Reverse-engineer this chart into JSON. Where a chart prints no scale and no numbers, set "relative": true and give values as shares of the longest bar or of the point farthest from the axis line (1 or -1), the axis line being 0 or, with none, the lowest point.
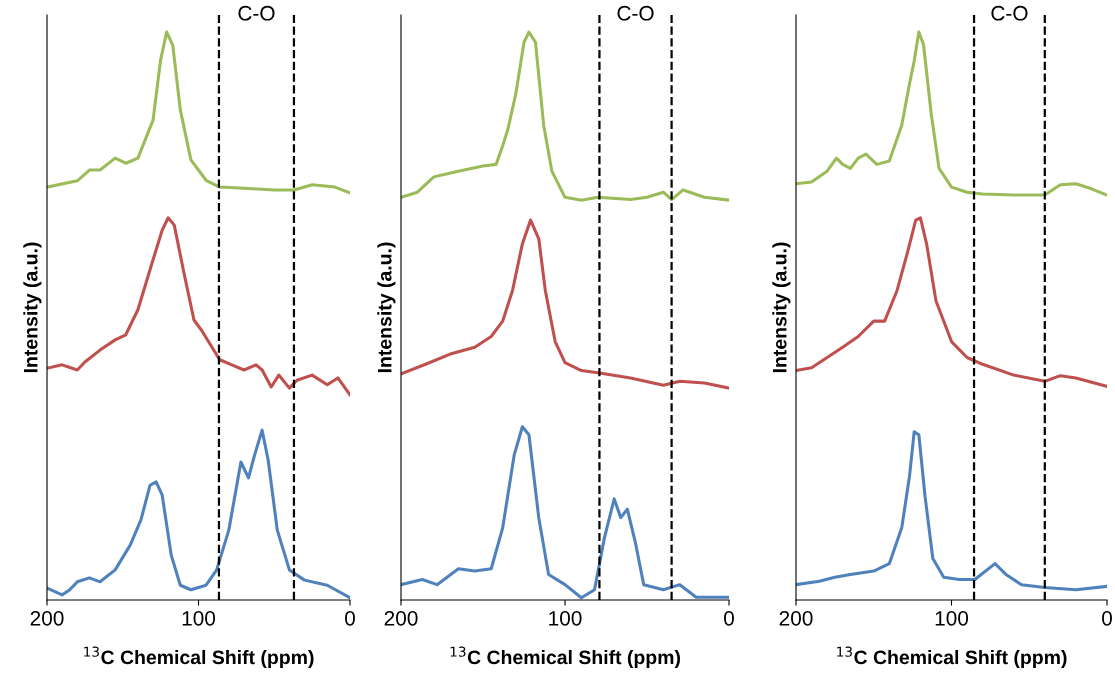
{
  "chart_data": [
    {
      "type": "line",
      "relative": true,
      "xlabel": "$^{13}$C Chemical Shift (ppm)",
      "ylabel": "Intensity (a.u.)",
      "xlim": [
        200,
        0
      ],
      "xticks": [
        200,
        100,
        0
      ],
      "tick_labels": "x",
      "line_style": "solid",
      "marker": "none",
      "grid": false,
      "legend": false,
      "annotations": [
        "C-O"
      ],
      "ref_lines": [
        {
          "axis": "x",
          "value": 86.5,
          "color": "#000000",
          "line_style": "dashed"
        },
        {
          "axis": "x",
          "value": 37,
          "color": "#000000",
          "line_style": "dashed"
        }
      ],
      "series": [
        {
          "color": "#9bbb59",
          "x": [
            200,
            180,
            172,
            165,
            155,
            148,
            140,
            130,
            125,
            121,
            117,
            112,
            105,
            95,
            86,
            70,
            50,
            37,
            25,
            10,
            0
          ],
          "values": [
            0.727,
            0.738,
            0.757,
            0.757,
            0.778,
            0.769,
            0.778,
            0.845,
            0.951,
            1.0,
            0.977,
            0.863,
            0.775,
            0.739,
            0.727,
            0.725,
            0.722,
            0.722,
            0.731,
            0.727,
            0.717
          ]
        },
        {
          "color": "#c0504d",
          "x": [
            200,
            190,
            180,
            175,
            165,
            155,
            148,
            140,
            130,
            124,
            120,
            116,
            110,
            103,
            98,
            92,
            86,
            78,
            70,
            62,
            58,
            52,
            47,
            40,
            35,
            25,
            15,
            8,
            0
          ],
          "values": [
            0.408,
            0.414,
            0.405,
            0.419,
            0.44,
            0.458,
            0.467,
            0.511,
            0.599,
            0.651,
            0.673,
            0.66,
            0.581,
            0.493,
            0.475,
            0.449,
            0.423,
            0.414,
            0.405,
            0.414,
            0.405,
            0.375,
            0.396,
            0.373,
            0.387,
            0.396,
            0.379,
            0.391,
            0.361
          ]
        },
        {
          "color": "#4f81bd",
          "x": [
            200,
            190,
            185,
            180,
            172,
            165,
            155,
            145,
            138,
            132,
            128,
            124,
            118,
            112,
            105,
            95,
            88,
            80,
            72,
            67,
            63,
            58,
            54,
            48,
            40,
            30,
            15,
            0
          ],
          "values": [
            0.021,
            0.009,
            0.018,
            0.032,
            0.039,
            0.032,
            0.053,
            0.097,
            0.141,
            0.202,
            0.208,
            0.185,
            0.079,
            0.026,
            0.018,
            0.026,
            0.053,
            0.123,
            0.243,
            0.215,
            0.255,
            0.299,
            0.246,
            0.123,
            0.053,
            0.035,
            0.026,
            0.004
          ]
        }
      ]
    },
    {
      "type": "line",
      "relative": true,
      "xlabel": "$^{13}$C Chemical Shift (ppm)",
      "ylabel": "Intensity (a.u.)",
      "xlim": [
        200,
        0
      ],
      "xticks": [
        200,
        100,
        0
      ],
      "tick_labels": "x",
      "line_style": "solid",
      "marker": "none",
      "grid": false,
      "legend": false,
      "annotations": [
        "C-O"
      ],
      "ref_lines": [
        {
          "axis": "x",
          "value": 79,
          "color": "#000000",
          "line_style": "dashed"
        },
        {
          "axis": "x",
          "value": 35,
          "color": "#000000",
          "line_style": "dashed"
        }
      ],
      "series": [
        {
          "color": "#9bbb59",
          "x": [
            200,
            190,
            180,
            165,
            150,
            142,
            138,
            135,
            130,
            125,
            122,
            118,
            113,
            108,
            100,
            90,
            80,
            60,
            50,
            40,
            35,
            28,
            15,
            0
          ],
          "values": [
            0.709,
            0.718,
            0.745,
            0.755,
            0.764,
            0.767,
            0.8,
            0.827,
            0.891,
            0.982,
            1.0,
            0.982,
            0.836,
            0.755,
            0.709,
            0.704,
            0.709,
            0.705,
            0.709,
            0.718,
            0.705,
            0.722,
            0.709,
            0.704
          ]
        },
        {
          "color": "#c0504d",
          "x": [
            200,
            185,
            170,
            155,
            145,
            138,
            132,
            126,
            121,
            116,
            112,
            106,
            100,
            90,
            80,
            60,
            40,
            30,
            15,
            0
          ],
          "values": [
            0.398,
            0.415,
            0.433,
            0.445,
            0.464,
            0.491,
            0.545,
            0.627,
            0.669,
            0.636,
            0.545,
            0.455,
            0.418,
            0.404,
            0.4,
            0.391,
            0.378,
            0.385,
            0.382,
            0.373
          ]
        },
        {
          "color": "#4f81bd",
          "x": [
            200,
            187,
            178,
            165,
            155,
            145,
            138,
            131,
            126,
            122,
            116,
            110,
            100,
            90,
            82,
            76,
            70,
            66,
            62,
            57,
            52,
            40,
            30,
            20,
            0
          ],
          "values": [
            0.027,
            0.036,
            0.027,
            0.055,
            0.051,
            0.055,
            0.127,
            0.255,
            0.305,
            0.291,
            0.145,
            0.045,
            0.027,
            0.004,
            0.018,
            0.109,
            0.178,
            0.145,
            0.16,
            0.1,
            0.027,
            0.018,
            0.027,
            0.005,
            0.005
          ]
        }
      ]
    },
    {
      "type": "line",
      "relative": true,
      "xlabel": "$^{13}$C Chemical Shift (ppm)",
      "ylabel": "Intensity (a.u.)",
      "xlim": [
        200,
        0
      ],
      "xticks": [
        200,
        100,
        0
      ],
      "tick_labels": "x",
      "line_style": "solid",
      "marker": "none",
      "grid": false,
      "legend": false,
      "annotations": [
        "C-O"
      ],
      "ref_lines": [
        {
          "axis": "x",
          "value": 85.5,
          "color": "#000000",
          "line_style": "dashed"
        },
        {
          "axis": "x",
          "value": 40,
          "color": "#000000",
          "line_style": "dashed"
        }
      ],
      "series": [
        {
          "color": "#9bbb59",
          "x": [
            200,
            190,
            180,
            174,
            170,
            165,
            160,
            155,
            148,
            140,
            132,
            127,
            124,
            121,
            118,
            113,
            108,
            100,
            90,
            80,
            60,
            40,
            30,
            20,
            10,
            0
          ],
          "values": [
            0.733,
            0.736,
            0.755,
            0.778,
            0.767,
            0.76,
            0.778,
            0.785,
            0.767,
            0.773,
            0.836,
            0.909,
            0.949,
            1.0,
            0.978,
            0.855,
            0.76,
            0.727,
            0.718,
            0.715,
            0.713,
            0.713,
            0.731,
            0.733,
            0.724,
            0.713
          ]
        },
        {
          "color": "#c0504d",
          "x": [
            200,
            190,
            180,
            170,
            160,
            150,
            143,
            135,
            128,
            123,
            120,
            116,
            110,
            100,
            90,
            80,
            60,
            40,
            30,
            20,
            0
          ],
          "values": [
            0.404,
            0.409,
            0.427,
            0.445,
            0.464,
            0.491,
            0.491,
            0.545,
            0.615,
            0.669,
            0.673,
            0.627,
            0.527,
            0.455,
            0.427,
            0.415,
            0.396,
            0.385,
            0.395,
            0.391,
            0.376
          ]
        },
        {
          "color": "#4f81bd",
          "x": [
            200,
            185,
            175,
            165,
            150,
            140,
            132,
            127,
            124,
            121,
            117,
            112,
            105,
            95,
            85,
            72,
            65,
            55,
            40,
            20,
            0
          ],
          "values": [
            0.027,
            0.033,
            0.04,
            0.045,
            0.051,
            0.064,
            0.127,
            0.218,
            0.296,
            0.291,
            0.182,
            0.073,
            0.04,
            0.036,
            0.036,
            0.064,
            0.045,
            0.027,
            0.022,
            0.018,
            0.024
          ]
        }
      ]
    }
  ]
}
